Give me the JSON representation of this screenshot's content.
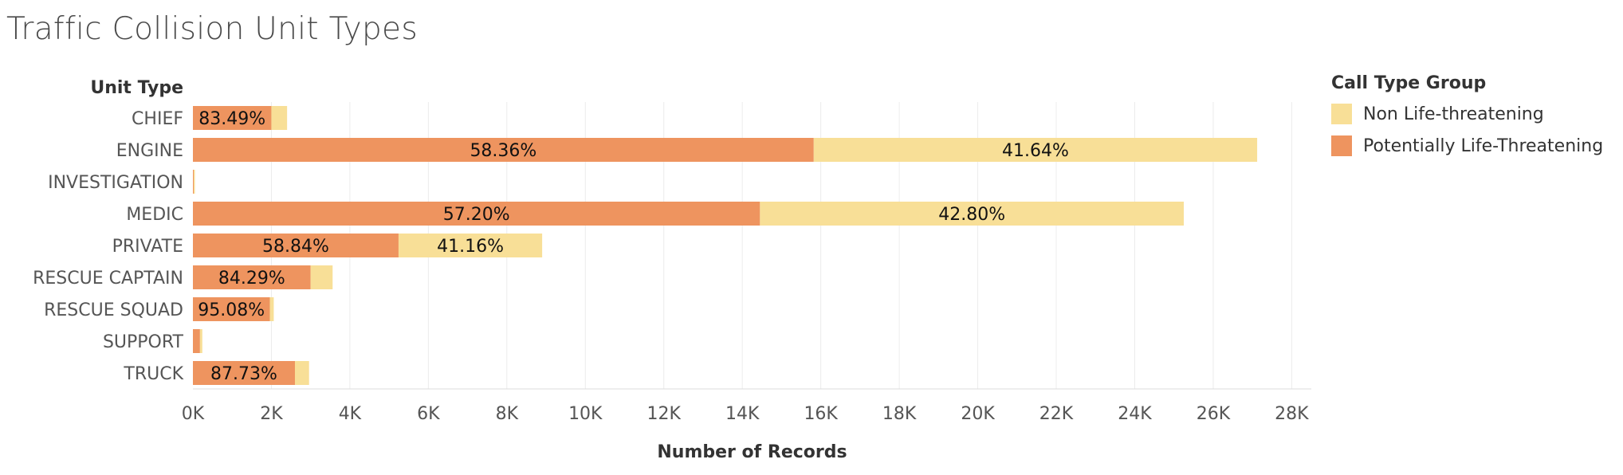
{
  "title": "Traffic Collision Unit Types",
  "chart_data": {
    "type": "bar",
    "orientation": "horizontal",
    "stacked": true,
    "title": "Traffic Collision Unit Types",
    "row_header": "Unit Type",
    "xlabel": "Number of Records",
    "xlim": [
      0,
      28500
    ],
    "xticks": [
      0,
      2000,
      4000,
      6000,
      8000,
      10000,
      12000,
      14000,
      16000,
      18000,
      20000,
      22000,
      24000,
      26000,
      28000
    ],
    "xtick_labels": [
      "0K",
      "2K",
      "4K",
      "6K",
      "8K",
      "10K",
      "12K",
      "14K",
      "16K",
      "18K",
      "20K",
      "22K",
      "24K",
      "26K",
      "28K"
    ],
    "grid": true,
    "categories": [
      "CHIEF",
      "ENGINE",
      "INVESTIGATION",
      "MEDIC",
      "PRIVATE",
      "RESCUE CAPTAIN",
      "RESCUE SQUAD",
      "SUPPORT",
      "TRUCK"
    ],
    "series": [
      {
        "name": "Potentially Life-Threatening",
        "color": "#ee945f",
        "values": [
          2000,
          15820,
          20,
          14450,
          5240,
          3000,
          1960,
          180,
          2600
        ],
        "labels": [
          "83.49%",
          "58.36%",
          "",
          "57.20%",
          "58.84%",
          "84.29%",
          "95.08%",
          "",
          "87.73%"
        ]
      },
      {
        "name": "Non Life-threatening",
        "color": "#f8df97",
        "values": [
          400,
          11300,
          30,
          10800,
          3660,
          560,
          100,
          60,
          360
        ],
        "labels": [
          "",
          "41.64%",
          "",
          "42.80%",
          "41.16%",
          "",
          "",
          "",
          ""
        ]
      }
    ],
    "legend": {
      "title": "Call Type Group",
      "position": "right",
      "items": [
        {
          "name": "Non Life-threatening",
          "color": "#f8df97"
        },
        {
          "name": "Potentially Life-Threatening",
          "color": "#ee945f"
        }
      ]
    }
  }
}
